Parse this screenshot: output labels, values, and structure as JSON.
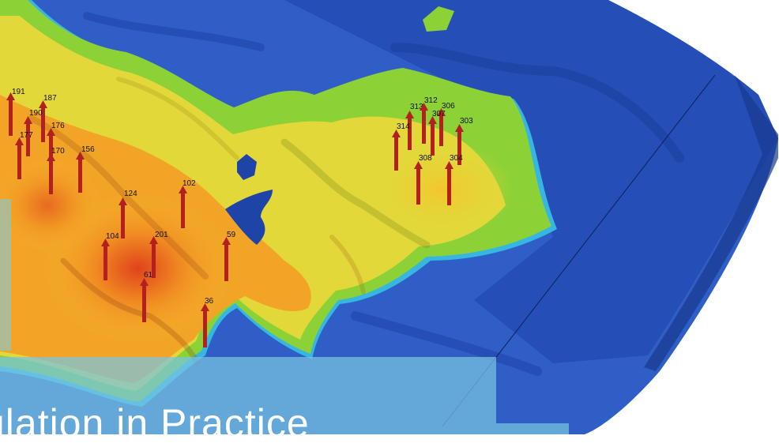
{
  "banner": {
    "title": "ulation in Practice"
  },
  "colors": {
    "deep": "#1a3d9e",
    "mid": "#2f5ec7",
    "cyan": "#36b6e0",
    "green": "#8cd236",
    "yellow": "#e2d83a",
    "orange": "#f29a22",
    "red": "#e0431c",
    "well": "#b3201f",
    "banner": "#78c3e1"
  },
  "wells": [
    {
      "label": "191"
    },
    {
      "label": "187"
    },
    {
      "label": "190"
    },
    {
      "label": "176"
    },
    {
      "label": "177"
    },
    {
      "label": "170"
    },
    {
      "label": "156"
    },
    {
      "label": "124"
    },
    {
      "label": "102"
    },
    {
      "label": "104"
    },
    {
      "label": "201"
    },
    {
      "label": "59"
    },
    {
      "label": "61"
    },
    {
      "label": "36"
    },
    {
      "label": "313"
    },
    {
      "label": "312"
    },
    {
      "label": "306"
    },
    {
      "label": "307"
    },
    {
      "label": "314"
    },
    {
      "label": "303"
    },
    {
      "label": "308"
    },
    {
      "label": "304"
    }
  ]
}
